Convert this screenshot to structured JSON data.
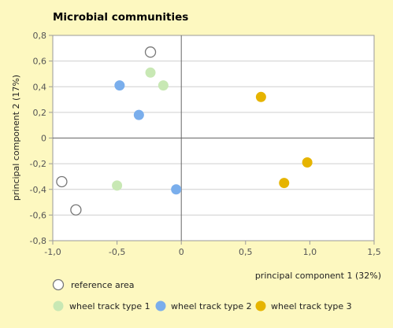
{
  "chart_data": {
    "type": "scatter",
    "title": "Microbial communities",
    "xlabel": "principal component 1 (32%)",
    "ylabel": "principal component 2 (17%)",
    "xlim": [
      -1.0,
      1.5
    ],
    "ylim": [
      -0.8,
      0.8
    ],
    "x_ticks": [
      "-1,0",
      "-0,5",
      "0",
      "0,5",
      "1,0",
      "1,5"
    ],
    "x_tick_values": [
      -1.0,
      -0.5,
      0,
      0.5,
      1.0,
      1.5
    ],
    "y_ticks": [
      "0,8",
      "0,6",
      "0,4",
      "0,2",
      "0",
      "-0,2",
      "-0,4",
      "-0,6",
      "-0,8"
    ],
    "y_tick_values": [
      0.8,
      0.6,
      0.4,
      0.2,
      0,
      -0.2,
      -0.4,
      -0.6,
      -0.8
    ],
    "grid": true,
    "legend_position": "bottom",
    "series": [
      {
        "name": "reference area",
        "style": "hollow",
        "color": "#777777",
        "points": [
          [
            -0.24,
            0.67
          ],
          [
            -0.93,
            -0.34
          ],
          [
            -0.82,
            -0.56
          ]
        ]
      },
      {
        "name": "wheel track type 1",
        "style": "filled",
        "color": "#c8e8b4",
        "points": [
          [
            -0.24,
            0.51
          ],
          [
            -0.14,
            0.41
          ],
          [
            -0.5,
            -0.37
          ]
        ]
      },
      {
        "name": "wheel track type 2",
        "style": "filled",
        "color": "#7aaeec",
        "points": [
          [
            -0.48,
            0.41
          ],
          [
            -0.33,
            0.18
          ],
          [
            -0.04,
            -0.4
          ]
        ]
      },
      {
        "name": "wheel track type 3",
        "style": "filled",
        "color": "#e6b400",
        "points": [
          [
            0.62,
            0.32
          ],
          [
            0.98,
            -0.19
          ],
          [
            0.8,
            -0.35
          ]
        ]
      }
    ]
  }
}
